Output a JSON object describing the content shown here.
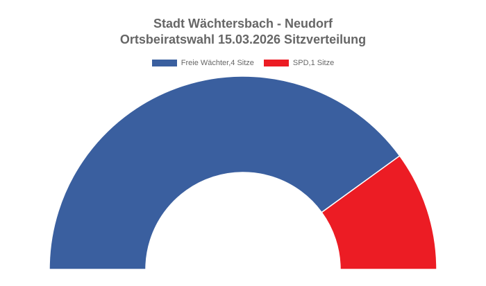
{
  "chart_data": {
    "type": "pie",
    "variant": "half-donut",
    "title": "Stadt Wächtersbach - Neudorf",
    "subtitle": "Ortsbeiratswahl 15.03.2026 Sitzverteilung",
    "legend_position": "top",
    "series": [
      {
        "name": "Freie Wächter,4 Sitze",
        "value": 4,
        "color": "#3a5f9f"
      },
      {
        "name": "SPD,1 Sitze",
        "value": 1,
        "color": "#ec1c24"
      }
    ]
  }
}
